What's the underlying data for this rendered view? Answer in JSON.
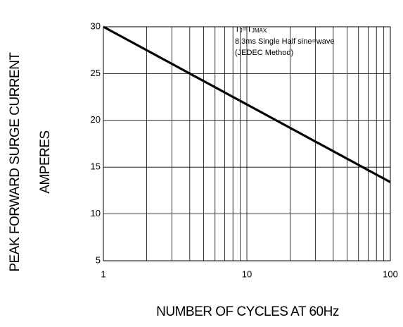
{
  "chart_data": {
    "type": "line",
    "xlabel": "NUMBER OF CYCLES AT 60Hz",
    "ylabel": [
      "PEAK FORWARD SURGE CURRENT",
      "AMPERES"
    ],
    "condition": {
      "t1": "T",
      "s1": "J",
      "t2": "=T",
      "s2": "JMAX"
    },
    "annotations": [
      "8.3ms Single Half  sine=wave",
      "(JEDEC Method)"
    ],
    "x": [
      1,
      100
    ],
    "series": [
      {
        "color": "#000000",
        "values": [
          30,
          13.4
        ]
      }
    ],
    "xlim": [
      1,
      100
    ],
    "xticks": [
      1,
      10,
      100
    ],
    "xlog": true,
    "ylim": [
      5,
      30
    ],
    "yticks": [
      5,
      10,
      15,
      20,
      25,
      30
    ],
    "grid": true
  }
}
